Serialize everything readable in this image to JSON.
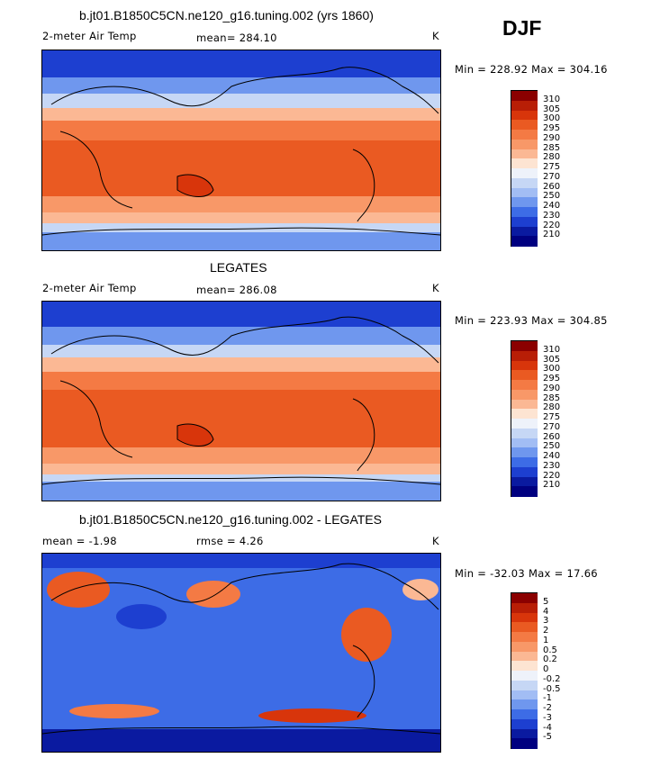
{
  "season": "DJF",
  "panels": [
    {
      "title": "b.jt01.B1850C5CN.ne120_g16.tuning.002 (yrs 1860)",
      "variable": "2-meter Air Temp",
      "stat_label": "mean= 284.10",
      "units": "K",
      "minmax": "Min = 228.92 Max = 304.16"
    },
    {
      "title": "LEGATES",
      "variable": "2-meter Air Temp",
      "stat_label": "mean= 286.08",
      "units": "K",
      "minmax": "Min = 223.93 Max = 304.85"
    },
    {
      "title": "b.jt01.B1850C5CN.ne120_g16.tuning.002 - LEGATES",
      "variable": "mean =   -1.98",
      "stat_label": "rmse =    4.26",
      "units": "K",
      "minmax": "Min = -32.03 Max =  17.66"
    }
  ],
  "legend_temp": {
    "labels": [
      "310",
      "305",
      "300",
      "295",
      "290",
      "285",
      "280",
      "275",
      "270",
      "260",
      "250",
      "240",
      "230",
      "220",
      "210"
    ],
    "colors": [
      "#8b0000",
      "#b81e06",
      "#d8350b",
      "#ea5a22",
      "#f47a44",
      "#f89868",
      "#fbb894",
      "#fde4d2",
      "#eef2fa",
      "#c6d7f5",
      "#a2bdf4",
      "#6f97ee",
      "#3d6ce6",
      "#1d3fd0",
      "#0a1aa0",
      "#000080"
    ]
  },
  "legend_diff": {
    "labels": [
      "5",
      "4",
      "3",
      "2",
      "1",
      "0.5",
      "0.2",
      "0",
      "-0.2",
      "-0.5",
      "-1",
      "-2",
      "-3",
      "-4",
      "-5"
    ],
    "colors": [
      "#8b0000",
      "#b81e06",
      "#d8350b",
      "#ea5a22",
      "#f47a44",
      "#f89868",
      "#fbb894",
      "#fde4d2",
      "#eef2fa",
      "#c6d7f5",
      "#a2bdf4",
      "#6f97ee",
      "#3d6ce6",
      "#1d3fd0",
      "#0a1aa0",
      "#000080"
    ]
  }
}
